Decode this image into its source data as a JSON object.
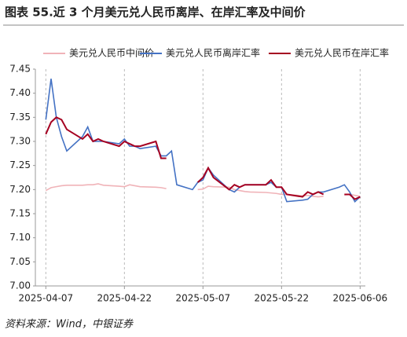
{
  "chart_data": {
    "type": "line",
    "title": "图表 55.近 3 个月美元兑人民币离岸、在岸汇率及中间价",
    "source": "资料来源：Wind，中银证券",
    "x": [
      "2025-04-07",
      "2025-04-08",
      "2025-04-09",
      "2025-04-10",
      "2025-04-11",
      "2025-04-14",
      "2025-04-15",
      "2025-04-16",
      "2025-04-17",
      "2025-04-18",
      "2025-04-21",
      "2025-04-22",
      "2025-04-23",
      "2025-04-24",
      "2025-04-25",
      "2025-04-28",
      "2025-04-29",
      "2025-04-30",
      "2025-05-01",
      "2025-05-02",
      "2025-05-05",
      "2025-05-06",
      "2025-05-07",
      "2025-05-08",
      "2025-05-09",
      "2025-05-12",
      "2025-05-13",
      "2025-05-14",
      "2025-05-15",
      "2025-05-16",
      "2025-05-19",
      "2025-05-20",
      "2025-05-21",
      "2025-05-22",
      "2025-05-23",
      "2025-05-26",
      "2025-05-27",
      "2025-05-28",
      "2025-05-29",
      "2025-05-30",
      "2025-06-02",
      "2025-06-03",
      "2025-06-04",
      "2025-06-05",
      "2025-06-06"
    ],
    "series": [
      {
        "name": "美元兑人民币中间价",
        "color": "#f0b3b8",
        "values": [
          7.198,
          7.204,
          7.206,
          7.208,
          7.209,
          7.209,
          7.21,
          7.21,
          7.212,
          7.209,
          7.207,
          7.206,
          7.21,
          7.208,
          7.206,
          7.205,
          7.204,
          7.202,
          null,
          null,
          null,
          7.2,
          7.201,
          7.207,
          7.206,
          7.205,
          7.2,
          7.198,
          7.196,
          7.195,
          7.194,
          7.193,
          7.192,
          7.19,
          7.19,
          7.187,
          7.188,
          7.186,
          7.185,
          7.186,
          null,
          7.189,
          7.19,
          7.188,
          7.186
        ]
      },
      {
        "name": "美元兑人民币离岸汇率",
        "color": "#4472c4",
        "values": [
          7.345,
          7.43,
          7.35,
          7.31,
          7.28,
          7.31,
          7.33,
          7.3,
          7.3,
          7.3,
          7.295,
          7.305,
          7.29,
          7.29,
          7.285,
          7.29,
          7.27,
          7.27,
          7.28,
          7.21,
          7.2,
          7.215,
          7.22,
          7.245,
          7.23,
          7.2,
          7.195,
          7.205,
          7.21,
          7.21,
          7.21,
          7.215,
          7.205,
          7.205,
          7.175,
          7.178,
          7.18,
          7.19,
          7.195,
          7.195,
          7.205,
          7.21,
          7.195,
          7.175,
          7.185
        ]
      },
      {
        "name": "美元兑人民币在岸汇率",
        "color": "#a50021",
        "values": [
          7.315,
          7.34,
          7.35,
          7.345,
          7.325,
          7.305,
          7.315,
          7.3,
          7.305,
          7.3,
          7.29,
          7.3,
          7.295,
          7.29,
          7.29,
          7.3,
          7.265,
          7.265,
          null,
          null,
          null,
          7.215,
          7.225,
          7.245,
          7.225,
          7.2,
          7.21,
          7.205,
          7.21,
          7.21,
          7.21,
          7.22,
          7.205,
          7.205,
          7.19,
          7.185,
          7.195,
          7.19,
          7.195,
          7.19,
          null,
          7.19,
          7.19,
          7.18,
          7.185
        ]
      }
    ],
    "xlim": [
      "2025-04-05",
      "2025-06-07"
    ],
    "xticks": [
      "2025-04-07",
      "2025-04-22",
      "2025-05-07",
      "2025-05-22",
      "2025-06-06"
    ],
    "ylim": [
      7.0,
      7.45
    ],
    "yticks": [
      {
        "value": 7.0,
        "label": "7.00"
      },
      7.05,
      {
        "value": 7.1,
        "label": "7.10"
      },
      7.15,
      {
        "value": 7.2,
        "label": "7.20"
      },
      7.25,
      {
        "value": 7.3,
        "label": "7.30"
      },
      7.35,
      {
        "value": 7.4,
        "label": "7.40"
      },
      7.45
    ],
    "x_grid": true
  }
}
